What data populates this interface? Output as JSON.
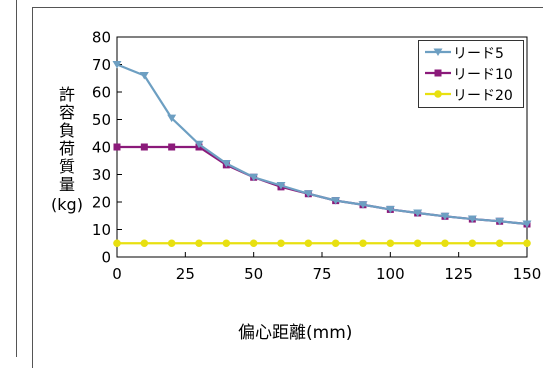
{
  "chart_data": {
    "type": "line",
    "title": "",
    "xlabel": "偏心距離(mm)",
    "ylabel": "許容負荷質量",
    "ylabel_unit": "(kg)",
    "xlim": [
      0,
      150
    ],
    "ylim": [
      0,
      80
    ],
    "x_ticks": [
      "0",
      "25",
      "50",
      "75",
      "100",
      "125",
      "150"
    ],
    "y_ticks": [
      "0",
      "10",
      "20",
      "30",
      "40",
      "50",
      "60",
      "70",
      "80"
    ],
    "grid": false,
    "legend_position": "top-right",
    "series": [
      {
        "name": "リード5",
        "color": "#6d9fc2",
        "marker": "triangle-down",
        "x": [
          0,
          10,
          20,
          30,
          40,
          50,
          60,
          70,
          80,
          90,
          100,
          110,
          120,
          130,
          140,
          150
        ],
        "y": [
          70,
          66,
          50.5,
          41,
          34,
          29,
          26,
          23,
          20.5,
          19,
          17.3,
          16,
          14.8,
          13.8,
          13,
          12
        ]
      },
      {
        "name": "リード10",
        "color": "#8b1a7a",
        "marker": "square",
        "x": [
          0,
          10,
          20,
          30,
          40,
          50,
          60,
          70,
          80,
          90,
          100,
          110,
          120,
          130,
          140,
          150
        ],
        "y": [
          40,
          40,
          40,
          40,
          33.5,
          29,
          25.5,
          23,
          20.5,
          19,
          17.3,
          16,
          14.8,
          13.8,
          13,
          12
        ]
      },
      {
        "name": "リード20",
        "color": "#e8e010",
        "marker": "circle",
        "x": [
          0,
          10,
          20,
          30,
          40,
          50,
          60,
          70,
          80,
          90,
          100,
          110,
          120,
          130,
          140,
          150
        ],
        "y": [
          5,
          5,
          5,
          5,
          5,
          5,
          5,
          5,
          5,
          5,
          5,
          5,
          5,
          5,
          5,
          5
        ]
      }
    ]
  }
}
